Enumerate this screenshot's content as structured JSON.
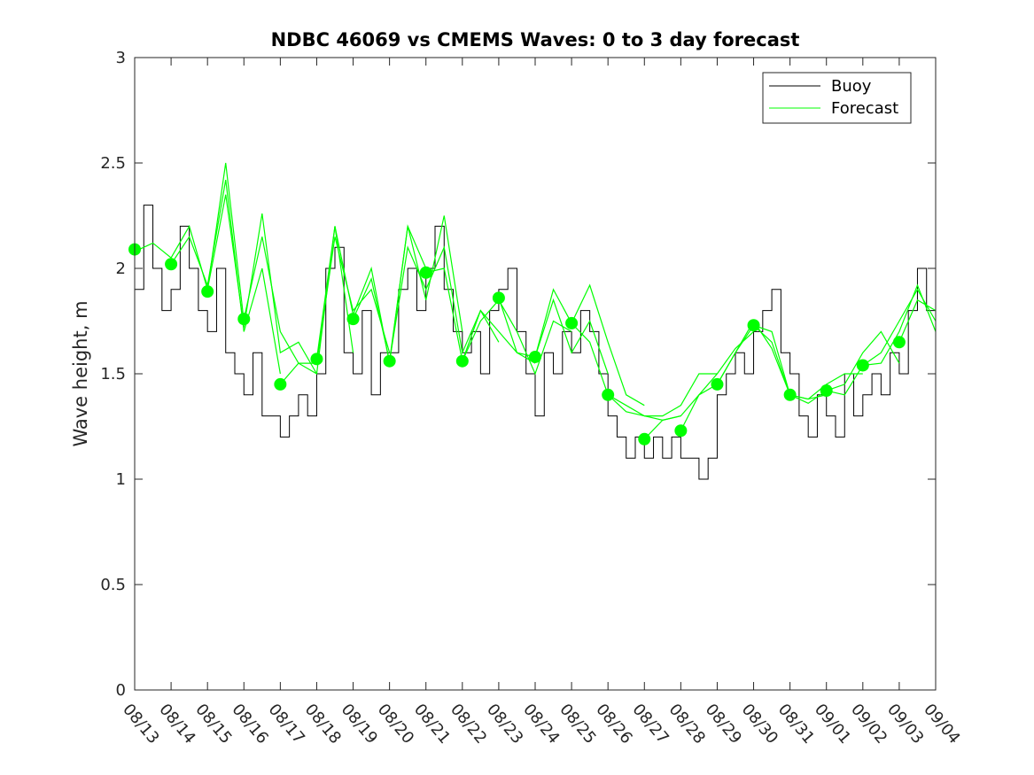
{
  "chart_data": {
    "type": "line",
    "title": "NDBC 46069 vs CMEMS Waves: 0 to 3 day forecast",
    "xlabel": "",
    "ylabel": "Wave height, m",
    "xlim": [
      "08/13",
      "09/04"
    ],
    "ylim": [
      0,
      3
    ],
    "x_tick_labels": [
      "08/13",
      "08/14",
      "08/15",
      "08/16",
      "08/17",
      "08/18",
      "08/19",
      "08/20",
      "08/21",
      "08/22",
      "08/23",
      "08/24",
      "08/25",
      "08/26",
      "08/27",
      "08/28",
      "08/29",
      "08/30",
      "08/31",
      "09/01",
      "09/02",
      "09/03",
      "09/04"
    ],
    "y_ticks": [
      0,
      0.5,
      1,
      1.5,
      2,
      2.5,
      3
    ],
    "y_tick_labels": [
      "0",
      "0.5",
      "1",
      "1.5",
      "2",
      "2.5",
      "3"
    ],
    "grid": false,
    "legend": {
      "position": "top-right",
      "entries": [
        "Buoy",
        "Forecast"
      ]
    },
    "colors": {
      "buoy": "#000000",
      "forecast": "#00ff00"
    },
    "buoy_series": {
      "name": "Buoy",
      "x": [
        "08/13",
        "08/13.25",
        "08/13.5",
        "08/13.75",
        "08/14",
        "08/14.25",
        "08/14.5",
        "08/14.75",
        "08/15",
        "08/15.25",
        "08/15.5",
        "08/15.75",
        "08/16",
        "08/16.25",
        "08/16.5",
        "08/16.75",
        "08/17",
        "08/17.25",
        "08/17.5",
        "08/17.75",
        "08/18",
        "08/18.25",
        "08/18.5",
        "08/18.75",
        "08/19",
        "08/19.25",
        "08/19.5",
        "08/19.75",
        "08/20",
        "08/20.25",
        "08/20.5",
        "08/20.75",
        "08/21",
        "08/21.25",
        "08/21.5",
        "08/21.75",
        "08/22",
        "08/22.25",
        "08/22.5",
        "08/22.75",
        "08/23",
        "08/23.25",
        "08/23.5",
        "08/23.75",
        "08/24",
        "08/24.25",
        "08/24.5",
        "08/24.75",
        "08/25",
        "08/25.25",
        "08/25.5",
        "08/25.75",
        "08/26",
        "08/26.25",
        "08/26.5",
        "08/26.75",
        "08/27",
        "08/27.25",
        "08/27.5",
        "08/27.75",
        "08/28",
        "08/28.25",
        "08/28.5",
        "08/28.75",
        "08/29",
        "08/29.25",
        "08/29.5",
        "08/29.75",
        "08/30",
        "08/30.25",
        "08/30.5",
        "08/30.75",
        "08/31",
        "08/31.25",
        "08/31.5",
        "08/31.75",
        "09/01",
        "09/01.25",
        "09/01.5",
        "09/01.75",
        "09/02",
        "09/02.25",
        "09/02.5",
        "09/02.75",
        "09/03",
        "09/03.25",
        "09/03.5",
        "09/03.75",
        "09/04"
      ],
      "values": [
        1.9,
        2.3,
        2.0,
        1.8,
        1.9,
        2.2,
        2.0,
        1.8,
        1.7,
        2.0,
        1.6,
        1.5,
        1.4,
        1.6,
        1.3,
        1.3,
        1.2,
        1.3,
        1.4,
        1.3,
        1.5,
        2.0,
        2.1,
        1.6,
        1.5,
        1.8,
        1.4,
        1.6,
        1.6,
        1.9,
        2.0,
        1.8,
        2.0,
        2.2,
        1.9,
        1.7,
        1.6,
        1.7,
        1.5,
        1.8,
        1.9,
        2.0,
        1.7,
        1.5,
        1.3,
        1.6,
        1.5,
        1.7,
        1.6,
        1.8,
        1.7,
        1.5,
        1.3,
        1.2,
        1.1,
        1.2,
        1.1,
        1.2,
        1.1,
        1.2,
        1.1,
        1.1,
        1.0,
        1.1,
        1.4,
        1.5,
        1.6,
        1.5,
        1.7,
        1.8,
        1.9,
        1.6,
        1.5,
        1.3,
        1.2,
        1.4,
        1.3,
        1.2,
        1.5,
        1.3,
        1.4,
        1.5,
        1.4,
        1.6,
        1.5,
        1.8,
        2.0,
        1.8,
        1.5
      ]
    },
    "forecast_series": [
      {
        "x": [
          "08/13",
          "08/13.5",
          "08/14",
          "08/14.5",
          "08/15",
          "08/15.5",
          "08/16"
        ],
        "values": [
          2.08,
          2.12,
          2.05,
          2.2,
          1.9,
          2.5,
          1.75
        ]
      },
      {
        "x": [
          "08/14",
          "08/14.5",
          "08/15",
          "08/15.5",
          "08/16",
          "08/16.5",
          "08/17"
        ],
        "values": [
          2.02,
          2.15,
          1.92,
          2.42,
          1.7,
          2.0,
          1.5
        ]
      },
      {
        "x": [
          "08/15",
          "08/15.5",
          "08/16",
          "08/16.5",
          "08/17",
          "08/17.5",
          "08/18"
        ],
        "values": [
          1.9,
          2.35,
          1.72,
          2.26,
          1.6,
          1.65,
          1.5
        ]
      },
      {
        "x": [
          "08/16",
          "08/16.5",
          "08/17",
          "08/17.5",
          "08/18",
          "08/18.5",
          "08/19"
        ],
        "values": [
          1.76,
          2.15,
          1.7,
          1.55,
          1.5,
          2.2,
          1.6
        ]
      },
      {
        "x": [
          "08/17",
          "08/17.5",
          "08/18",
          "08/18.5",
          "08/19",
          "08/19.5",
          "08/20"
        ],
        "values": [
          1.45,
          1.55,
          1.55,
          2.15,
          1.8,
          1.9,
          1.6
        ]
      },
      {
        "x": [
          "08/18",
          "08/18.5",
          "08/19",
          "08/19.5",
          "08/20",
          "08/20.5",
          "08/21"
        ],
        "values": [
          1.57,
          2.2,
          1.78,
          2.0,
          1.55,
          2.2,
          2.0
        ]
      },
      {
        "x": [
          "08/19",
          "08/19.5",
          "08/20",
          "08/20.5",
          "08/21",
          "08/21.5",
          "08/22"
        ],
        "values": [
          1.76,
          1.95,
          1.56,
          2.2,
          1.85,
          2.25,
          1.7
        ]
      },
      {
        "x": [
          "08/20",
          "08/20.5",
          "08/21",
          "08/21.5",
          "08/22",
          "08/22.5",
          "08/23"
        ],
        "values": [
          1.56,
          2.1,
          1.9,
          2.1,
          1.6,
          1.8,
          1.65
        ]
      },
      {
        "x": [
          "08/21",
          "08/21.5",
          "08/22",
          "08/22.5",
          "08/23",
          "08/23.5",
          "08/24"
        ],
        "values": [
          1.98,
          2.0,
          1.56,
          1.8,
          1.7,
          1.6,
          1.55
        ]
      },
      {
        "x": [
          "08/22",
          "08/22.5",
          "08/23",
          "08/23.5",
          "08/24",
          "08/24.5",
          "08/25"
        ],
        "values": [
          1.56,
          1.75,
          1.85,
          1.7,
          1.5,
          1.75,
          1.7
        ]
      },
      {
        "x": [
          "08/23",
          "08/23.5",
          "08/24",
          "08/24.5",
          "08/25",
          "08/25.5",
          "08/26"
        ],
        "values": [
          1.86,
          1.6,
          1.58,
          1.85,
          1.6,
          1.75,
          1.5
        ]
      },
      {
        "x": [
          "08/24",
          "08/24.5",
          "08/25",
          "08/25.5",
          "08/26",
          "08/26.5",
          "08/27"
        ],
        "values": [
          1.58,
          1.9,
          1.74,
          1.92,
          1.65,
          1.4,
          1.35
        ]
      },
      {
        "x": [
          "08/25",
          "08/25.5",
          "08/26",
          "08/26.5",
          "08/27",
          "08/27.5",
          "08/28"
        ],
        "values": [
          1.74,
          1.65,
          1.4,
          1.32,
          1.3,
          1.28,
          1.3
        ]
      },
      {
        "x": [
          "08/26",
          "08/26.5",
          "08/27",
          "08/27.5",
          "08/28",
          "08/28.5",
          "08/29"
        ],
        "values": [
          1.4,
          1.35,
          1.3,
          1.3,
          1.35,
          1.5,
          1.5
        ]
      },
      {
        "x": [
          "08/27",
          "08/27.5",
          "08/28",
          "08/28.5",
          "08/29",
          "08/29.5",
          "08/30"
        ],
        "values": [
          1.19,
          1.28,
          1.3,
          1.4,
          1.5,
          1.62,
          1.7
        ]
      },
      {
        "x": [
          "08/28",
          "08/28.5",
          "08/29",
          "08/29.5",
          "08/30",
          "08/30.5",
          "08/31"
        ],
        "values": [
          1.23,
          1.4,
          1.45,
          1.6,
          1.75,
          1.62,
          1.4
        ]
      },
      {
        "x": [
          "08/29",
          "08/29.5",
          "08/30",
          "08/30.5",
          "08/31",
          "08/31.5",
          "09/01"
        ],
        "values": [
          1.45,
          1.6,
          1.73,
          1.7,
          1.4,
          1.38,
          1.4
        ]
      },
      {
        "x": [
          "08/30",
          "08/30.5",
          "08/31",
          "08/31.5",
          "09/01",
          "09/01.5",
          "09/02"
        ],
        "values": [
          1.73,
          1.65,
          1.4,
          1.38,
          1.45,
          1.5,
          1.5
        ]
      },
      {
        "x": [
          "08/31",
          "08/31.5",
          "09/01",
          "09/01.5",
          "09/02",
          "09/02.5",
          "09/03"
        ],
        "values": [
          1.4,
          1.36,
          1.42,
          1.45,
          1.6,
          1.7,
          1.55
        ]
      },
      {
        "x": [
          "09/01",
          "09/01.5",
          "09/02",
          "09/02.5",
          "09/03",
          "09/03.5",
          "09/04"
        ],
        "values": [
          1.42,
          1.4,
          1.54,
          1.6,
          1.75,
          1.9,
          1.75
        ]
      },
      {
        "x": [
          "09/02",
          "09/02.5",
          "09/03",
          "09/03.5",
          "09/04"
        ],
        "values": [
          1.54,
          1.55,
          1.7,
          1.92,
          1.7
        ]
      },
      {
        "x": [
          "09/03",
          "09/03.5",
          "09/04"
        ],
        "values": [
          1.65,
          1.85,
          1.8
        ]
      }
    ],
    "forecast_start_points": {
      "x": [
        "08/13",
        "08/14",
        "08/15",
        "08/16",
        "08/17",
        "08/18",
        "08/19",
        "08/20",
        "08/21",
        "08/22",
        "08/23",
        "08/24",
        "08/25",
        "08/26",
        "08/27",
        "08/28",
        "08/29",
        "08/30",
        "08/31",
        "09/01",
        "09/02",
        "09/03"
      ],
      "values": [
        2.09,
        2.02,
        1.89,
        1.76,
        1.45,
        1.57,
        1.76,
        1.56,
        1.98,
        1.56,
        1.86,
        1.58,
        1.74,
        1.4,
        1.19,
        1.23,
        1.45,
        1.73,
        1.4,
        1.42,
        1.54,
        1.65
      ]
    }
  }
}
